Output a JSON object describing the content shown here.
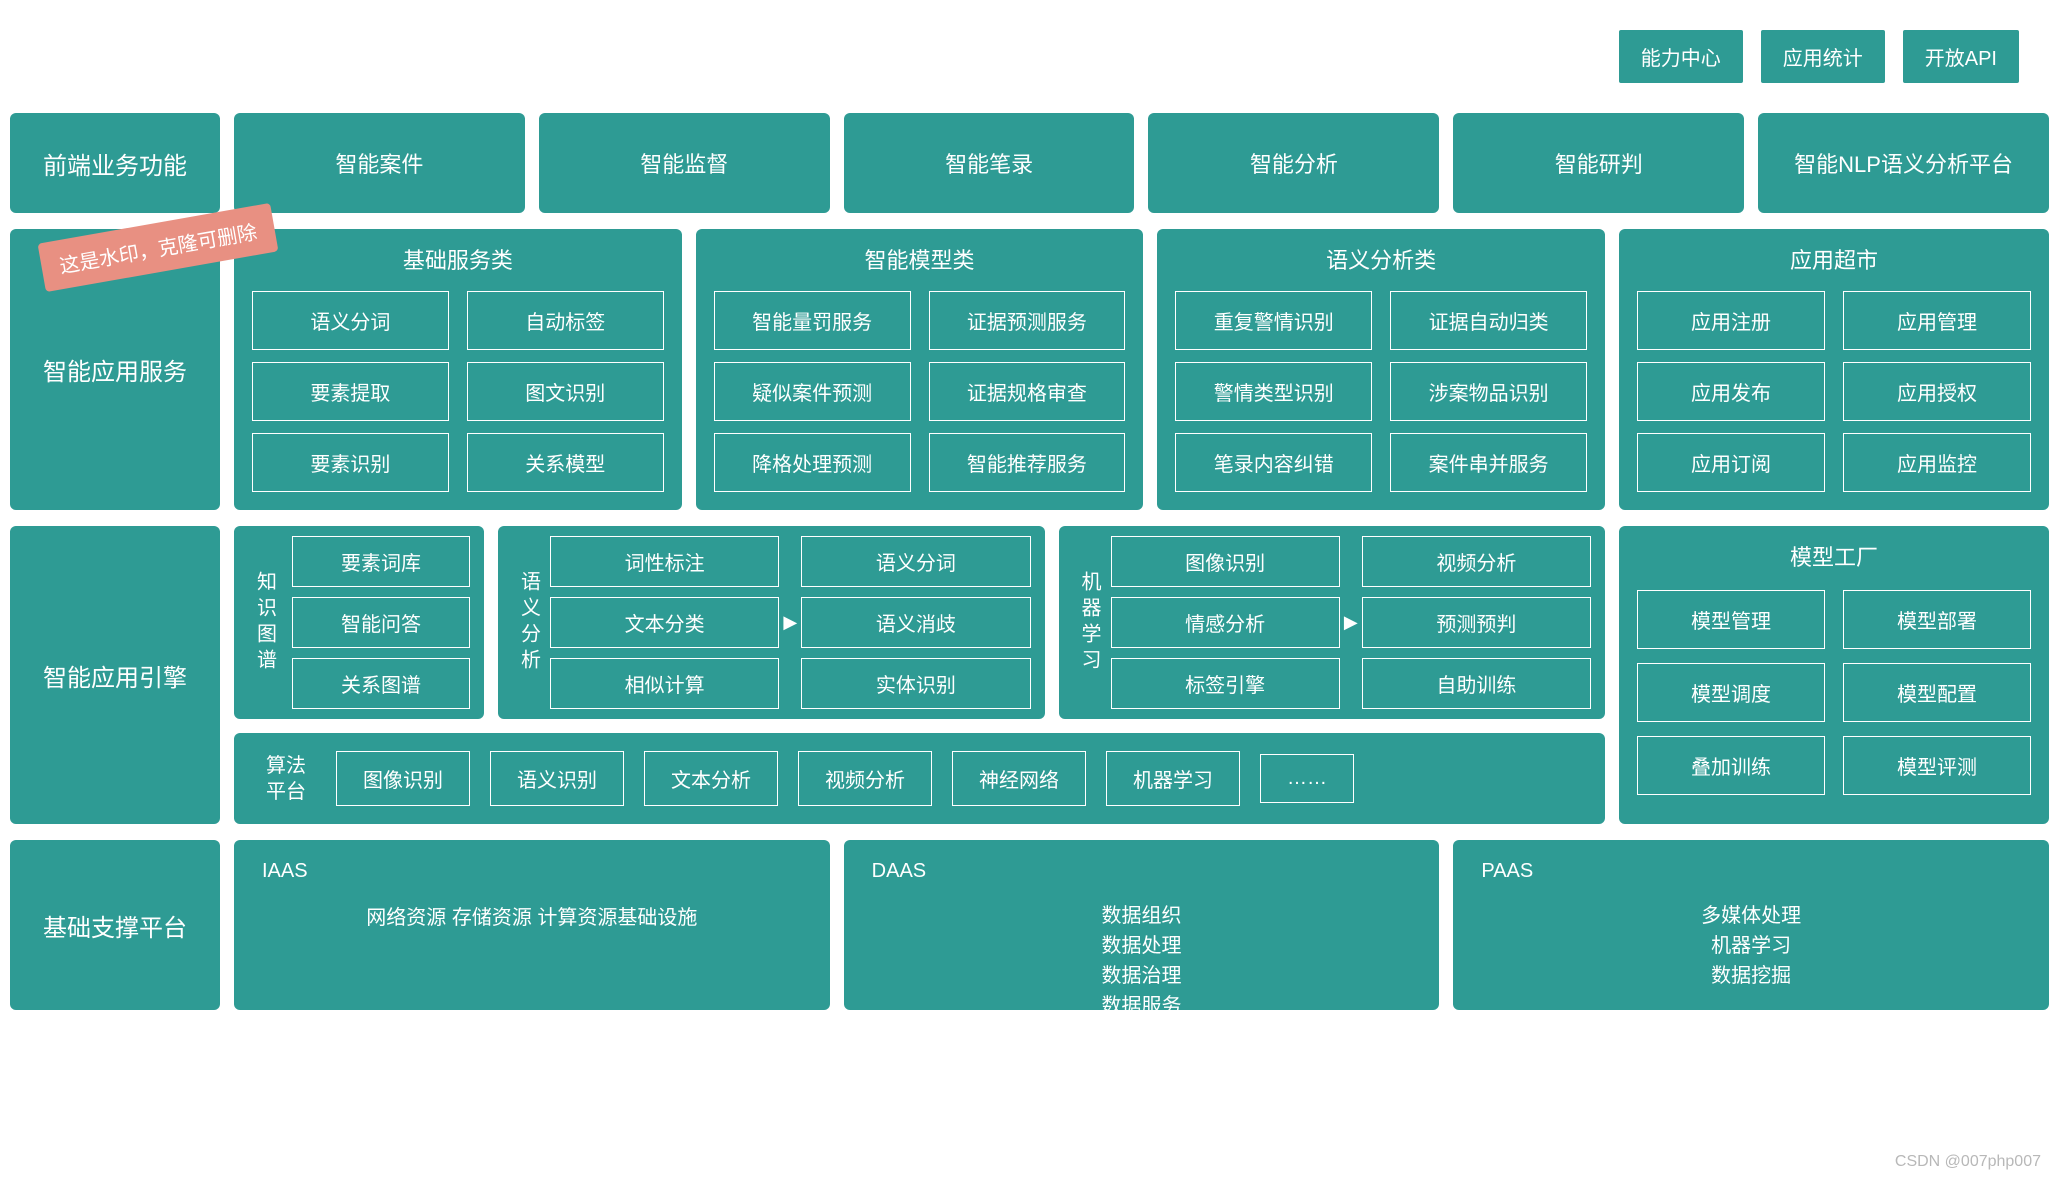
{
  "colors": {
    "primary": "#2e9b94",
    "watermark_bg": "#e89082",
    "text": "#ffffff"
  },
  "top_buttons": [
    "能力中心",
    "应用统计",
    "开放API"
  ],
  "row1": {
    "side": "前端业务功能",
    "cells": [
      "智能案件",
      "智能监督",
      "智能笔录",
      "智能分析",
      "智能研判"
    ],
    "big": {
      "title": "智能NLP语义分析平台",
      "sub": ""
    }
  },
  "watermark": "这是水印，克隆可删除",
  "row2": {
    "side": "智能应用服务",
    "groups": [
      {
        "title": "基础服务类",
        "items": [
          "语义分词",
          "自动标签",
          "要素提取",
          "图文识别",
          "要素识别",
          "关系模型"
        ]
      },
      {
        "title": "智能模型类",
        "items": [
          "智能量罚服务",
          "证据预测服务",
          "疑似案件预测",
          "证据规格审查",
          "降格处理预测",
          "智能推荐服务"
        ]
      },
      {
        "title": "语义分析类",
        "items": [
          "重复警情识别",
          "证据自动归类",
          "警情类型识别",
          "涉案物品识别",
          "笔录内容纠错",
          "案件串并服务"
        ]
      },
      {
        "title": "应用超市",
        "items": [
          "应用注册",
          "应用管理",
          "应用发布",
          "应用授权",
          "应用订阅",
          "应用监控"
        ]
      }
    ]
  },
  "row3": {
    "side": "智能应用引擎",
    "blocks": [
      {
        "vlabel": "知识图谱",
        "cols": "one",
        "arrow": false,
        "items": [
          "要素词库",
          "智能问答",
          "关系图谱"
        ]
      },
      {
        "vlabel": "语义分析",
        "cols": "two",
        "arrow": true,
        "items": [
          "词性标注",
          "语义分词",
          "文本分类",
          "语义消歧",
          "相似计算",
          "实体识别"
        ]
      },
      {
        "vlabel": "机器学习",
        "cols": "two",
        "arrow": true,
        "items": [
          "图像识别",
          "视频分析",
          "情感分析",
          "预测预判",
          "标签引擎",
          "自助训练"
        ]
      }
    ],
    "algo": {
      "label": "算法\n平台",
      "items": [
        "图像识别",
        "语义识别",
        "文本分析",
        "视频分析",
        "神经网络",
        "机器学习",
        "……"
      ]
    },
    "factory": {
      "title": "模型工厂",
      "items": [
        "模型管理",
        "模型部署",
        "模型调度",
        "模型配置",
        "叠加训练",
        "模型评测"
      ]
    }
  },
  "row4": {
    "side": "基础支撑平台",
    "blocks": [
      {
        "title": "IAAS",
        "mode": "inline",
        "text": "网络资源 存储资源 计算资源基础设施"
      },
      {
        "title": "DAAS",
        "mode": "lines",
        "lines": [
          "数据组织",
          "数据处理",
          "数据治理",
          "数据服务"
        ]
      },
      {
        "title": "PAAS",
        "mode": "lines",
        "lines": [
          "多媒体处理",
          "机器学习",
          "数据挖掘"
        ]
      }
    ]
  },
  "footer_watermark": "CSDN @007php007"
}
